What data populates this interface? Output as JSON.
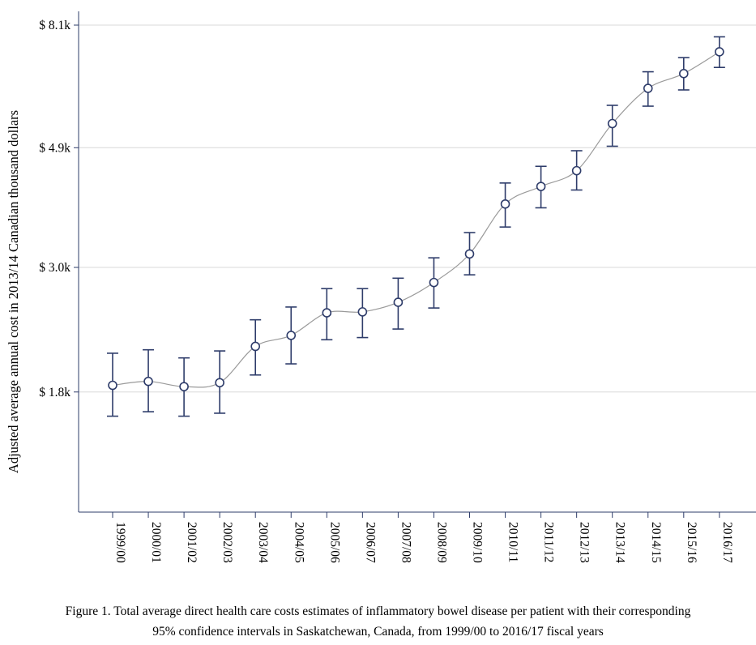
{
  "chart_data": {
    "type": "line",
    "xlabel": "",
    "ylabel": "Adjusted average annual cost in 2013/14  Canadian thousand dollars",
    "y_scale": "log",
    "ylim": [
      1.1,
      8.1
    ],
    "y_ticks": [
      {
        "value": 1.8,
        "label": "$ 1.8k"
      },
      {
        "value": 3.0,
        "label": "$ 3.0k"
      },
      {
        "value": 4.9,
        "label": "$ 4.9k"
      },
      {
        "value": 8.1,
        "label": "$ 8.1k"
      }
    ],
    "grid": "horizontal",
    "legend": "none",
    "categories": [
      "1999/00",
      "2000/01",
      "2001/02",
      "2002/03",
      "2003/04",
      "2004/05",
      "2005/06",
      "2006/07",
      "2007/08",
      "2008/09",
      "2009/10",
      "2010/11",
      "2011/12",
      "2012/13",
      "2013/14",
      "2014/15",
      "2015/16",
      "2016/17"
    ],
    "series": [
      {
        "values": [
          1.85,
          1.88,
          1.84,
          1.87,
          2.17,
          2.27,
          2.49,
          2.5,
          2.6,
          2.82,
          3.17,
          3.89,
          4.18,
          4.46,
          5.41,
          6.25,
          6.64,
          7.26
        ],
        "lower": [
          1.63,
          1.66,
          1.63,
          1.65,
          1.93,
          2.02,
          2.23,
          2.25,
          2.33,
          2.54,
          2.91,
          3.54,
          3.83,
          4.12,
          4.93,
          5.81,
          6.21,
          6.81
        ],
        "upper": [
          2.11,
          2.14,
          2.07,
          2.13,
          2.42,
          2.55,
          2.75,
          2.75,
          2.87,
          3.12,
          3.46,
          4.24,
          4.54,
          4.84,
          5.83,
          6.69,
          7.09,
          7.72
        ]
      }
    ],
    "colors": {
      "marker": "#2e3c6a",
      "line": "#9a9a9a",
      "axis": "#2e3c6a",
      "grid": "#d8d8d8"
    }
  },
  "caption": {
    "line1": "Figure 1. Total average direct health care costs estimates of inflammatory bowel disease per patient with their corresponding",
    "line2": "95% confidence intervals in Saskatchewan, Canada, from 1999/00 to 2016/17 fiscal years"
  }
}
